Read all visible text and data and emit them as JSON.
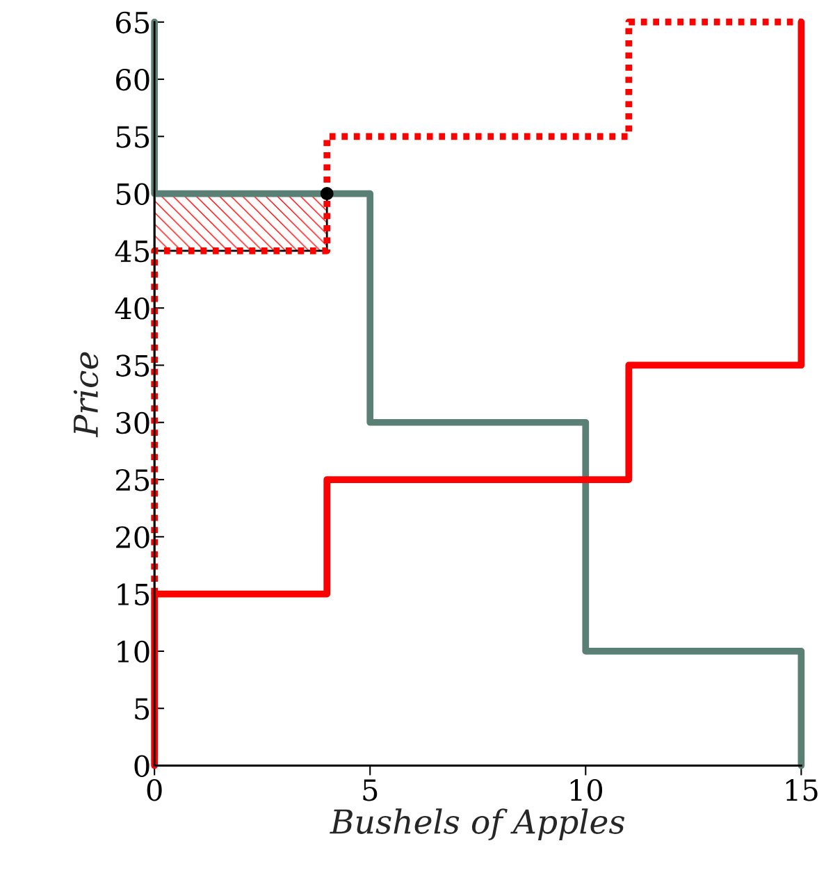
{
  "chart_data": {
    "type": "line",
    "xlabel": "Bushels of Apples",
    "ylabel": "Price",
    "xlim": [
      0,
      15
    ],
    "xticks": [
      0,
      5,
      10,
      15
    ],
    "ylim": [
      0,
      65
    ],
    "yticks": [
      0,
      5,
      10,
      15,
      20,
      25,
      30,
      35,
      40,
      45,
      50,
      55,
      60,
      65
    ],
    "grid": false,
    "legend": false,
    "series": [
      {
        "type": "bar",
        "color": "#ff0000",
        "x": [
          2
        ],
        "values": [
          5
        ],
        "base": [
          45
        ]
      },
      {
        "color": "#000000",
        "x": [
          0,
          0,
          0,
          4,
          4
        ],
        "values": [
          15,
          50,
          45,
          45,
          50
        ],
        "line_style": "solid"
      },
      {
        "color": "#5a8076",
        "x": [
          0,
          0,
          5,
          5,
          10,
          10,
          15,
          15
        ],
        "values": [
          65,
          50,
          50,
          30,
          30,
          10,
          10,
          0
        ],
        "line_style": "solid"
      },
      {
        "color": "#ff0000",
        "x": [
          0,
          0,
          4,
          4,
          11,
          11,
          15,
          15
        ],
        "values": [
          0,
          15,
          15,
          25,
          25,
          35,
          35,
          65
        ],
        "line_style": "solid"
      },
      {
        "color": "#ff0000",
        "x": [
          0,
          0,
          4,
          4,
          11,
          11,
          15
        ],
        "values": [
          15,
          45,
          45,
          55,
          55,
          65,
          65
        ],
        "line_style": "dotted"
      },
      {
        "type": "scatter",
        "color": "#000000",
        "x": [
          4
        ],
        "values": [
          50
        ],
        "marker": "circle"
      }
    ]
  }
}
